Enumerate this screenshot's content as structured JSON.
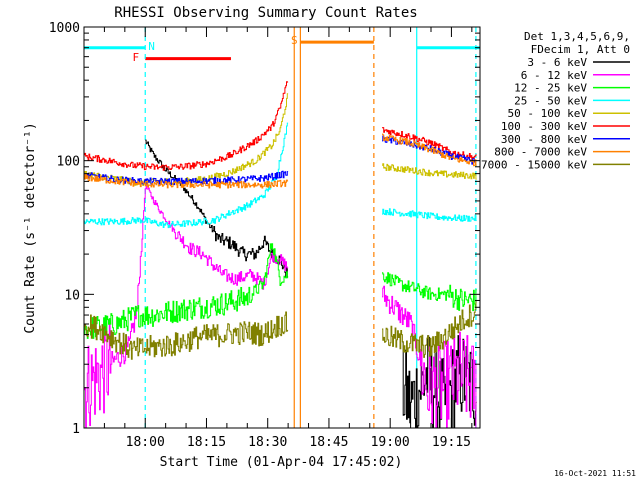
{
  "chart_data": {
    "type": "line",
    "title": "RHESSI Observing Summary Count Rates",
    "xlabel": "Start Time (01-Apr-04 17:45:02)",
    "ylabel": "Count Rate (s⁻¹ detector⁻¹)",
    "y_scale": "log",
    "ylim": [
      1,
      1000
    ],
    "xlim_minutes": [
      0,
      97
    ],
    "x_ticks": [
      {
        "label": "18:00",
        "minute": 15
      },
      {
        "label": "18:15",
        "minute": 30
      },
      {
        "label": "18:30",
        "minute": 45
      },
      {
        "label": "18:45",
        "minute": 60
      },
      {
        "label": "19:00",
        "minute": 75
      },
      {
        "label": "19:15",
        "minute": 90
      }
    ],
    "y_ticks": [
      {
        "label": "1",
        "value": 1
      },
      {
        "label": "10",
        "value": 10
      },
      {
        "label": "100",
        "value": 100
      },
      {
        "label": "1000",
        "value": 1000
      }
    ],
    "legend_header": [
      "Det 1,3,4,5,6,9,",
      "FDecim 1, Att 0"
    ],
    "legend_position": "right",
    "timestamp": "16-Oct-2021 11:51",
    "annotations": [
      {
        "text": "N",
        "color": "#00ffff",
        "x_minute": 15
      },
      {
        "text": "F",
        "color": "#ff0000",
        "x_minute": 14
      },
      {
        "text": "S",
        "color": "#ff8000",
        "x_minute": 51.6
      }
    ],
    "bars": [
      {
        "name": "night",
        "color": "#00ffff",
        "level": 700,
        "segments": [
          [
            0,
            15
          ],
          [
            81.5,
            97
          ]
        ]
      },
      {
        "name": "flare",
        "color": "#ff0000",
        "level": 580,
        "segments": [
          [
            15,
            36
          ]
        ]
      },
      {
        "name": "saa",
        "color": "#ff8000",
        "level": 770,
        "segments": [
          [
            53,
            71
          ]
        ]
      }
    ],
    "vlines": [
      {
        "color": "#00ffff",
        "style": "dashed",
        "x_minute": 15
      },
      {
        "color": "#00ffff",
        "style": "solid",
        "x_minute": 81.5
      },
      {
        "color": "#00ffff",
        "style": "dashed",
        "x_minute": 96
      },
      {
        "color": "#ff8000",
        "style": "solid",
        "x_minute": 51.5
      },
      {
        "color": "#ff8000",
        "style": "solid",
        "x_minute": 53
      },
      {
        "color": "#ff8000",
        "style": "dashed",
        "x_minute": 71
      }
    ],
    "series": [
      {
        "name": "3 - 6 keV",
        "color": "#000000",
        "seg1": [
          [
            15,
            140
          ],
          [
            17,
            110
          ],
          [
            20,
            85
          ],
          [
            24,
            65
          ],
          [
            28,
            45
          ],
          [
            30,
            35
          ],
          [
            33,
            26
          ],
          [
            36,
            24
          ],
          [
            39,
            20
          ],
          [
            42,
            20
          ],
          [
            44,
            25
          ],
          [
            46,
            20
          ],
          [
            48,
            18
          ],
          [
            49.8,
            14
          ]
        ],
        "seg2": [
          [
            78,
            2
          ],
          [
            80,
            1.5
          ],
          [
            84,
            2.5
          ],
          [
            88,
            1.5
          ],
          [
            92,
            2.5
          ],
          [
            96,
            2
          ]
        ]
      },
      {
        "name": "6 - 12 keV",
        "color": "#ff00ff",
        "seg1": [
          [
            0,
            2
          ],
          [
            11,
            4
          ],
          [
            13,
            8
          ],
          [
            15,
            65
          ],
          [
            18,
            45
          ],
          [
            22,
            30
          ],
          [
            26,
            22
          ],
          [
            29,
            20
          ],
          [
            32,
            16
          ],
          [
            34,
            14
          ],
          [
            37,
            13
          ],
          [
            41,
            14
          ],
          [
            44,
            12
          ],
          [
            46,
            20
          ],
          [
            48,
            18
          ],
          [
            49.8,
            16
          ]
        ],
        "seg2": [
          [
            73,
            10
          ],
          [
            76,
            8
          ],
          [
            80,
            6
          ],
          [
            84,
            2
          ],
          [
            88,
            2
          ],
          [
            92,
            2.5
          ],
          [
            96,
            2
          ]
        ]
      },
      {
        "name": "12 - 25 keV",
        "color": "#00ff00",
        "seg1": [
          [
            0,
            5.5
          ],
          [
            8,
            6
          ],
          [
            13,
            7
          ],
          [
            17,
            7
          ],
          [
            22,
            7.5
          ],
          [
            28,
            8
          ],
          [
            34,
            8.5
          ],
          [
            40,
            9.5
          ],
          [
            44,
            12
          ],
          [
            46,
            25
          ],
          [
            48,
            13
          ],
          [
            49.8,
            14
          ]
        ],
        "seg2": [
          [
            73,
            14
          ],
          [
            77,
            12
          ],
          [
            81,
            11
          ],
          [
            85,
            10
          ],
          [
            89,
            10
          ],
          [
            93,
            9
          ],
          [
            96,
            9
          ]
        ]
      },
      {
        "name": "25 - 50 keV",
        "color": "#00ffff",
        "seg1": [
          [
            0,
            35
          ],
          [
            8,
            35
          ],
          [
            14,
            36
          ],
          [
            20,
            33
          ],
          [
            26,
            34
          ],
          [
            32,
            36
          ],
          [
            36,
            41
          ],
          [
            40,
            46
          ],
          [
            44,
            55
          ],
          [
            47,
            75
          ],
          [
            49.8,
            185
          ]
        ],
        "seg2": [
          [
            73,
            42
          ],
          [
            80,
            40
          ],
          [
            86,
            38
          ],
          [
            92,
            37
          ],
          [
            96,
            37
          ]
        ]
      },
      {
        "name": "50 - 100 keV",
        "color": "#ccc000",
        "seg1": [
          [
            0,
            80
          ],
          [
            8,
            73
          ],
          [
            14,
            68
          ],
          [
            18,
            70
          ],
          [
            24,
            70
          ],
          [
            30,
            73
          ],
          [
            36,
            82
          ],
          [
            42,
            100
          ],
          [
            46,
            130
          ],
          [
            48,
            170
          ],
          [
            49.8,
            300
          ]
        ],
        "seg2": [
          [
            73,
            90
          ],
          [
            80,
            85
          ],
          [
            86,
            80
          ],
          [
            92,
            78
          ],
          [
            96,
            77
          ]
        ]
      },
      {
        "name": "100 - 300 keV",
        "color": "#ff0000",
        "seg1": [
          [
            0,
            108
          ],
          [
            6,
            100
          ],
          [
            12,
            92
          ],
          [
            18,
            89
          ],
          [
            24,
            90
          ],
          [
            30,
            95
          ],
          [
            36,
            110
          ],
          [
            42,
            140
          ],
          [
            46,
            180
          ],
          [
            48,
            250
          ],
          [
            49.8,
            400
          ]
        ],
        "seg2": [
          [
            73,
            170
          ],
          [
            79,
            155
          ],
          [
            85,
            135
          ],
          [
            90,
            115
          ],
          [
            96,
            105
          ]
        ]
      },
      {
        "name": "300 - 800 keV",
        "color": "#0000ff",
        "seg1": [
          [
            0,
            78
          ],
          [
            8,
            72
          ],
          [
            14,
            70
          ],
          [
            20,
            70
          ],
          [
            26,
            70
          ],
          [
            32,
            71
          ],
          [
            38,
            72
          ],
          [
            44,
            74
          ],
          [
            49.8,
            80
          ]
        ],
        "seg2": [
          [
            73,
            145
          ],
          [
            79,
            135
          ],
          [
            85,
            122
          ],
          [
            90,
            108
          ],
          [
            96,
            98
          ]
        ]
      },
      {
        "name": "800 - 7000 keV",
        "color": "#ff8000",
        "seg1": [
          [
            0,
            75
          ],
          [
            8,
            70
          ],
          [
            14,
            67
          ],
          [
            20,
            66
          ],
          [
            26,
            66
          ],
          [
            32,
            66
          ],
          [
            38,
            66
          ],
          [
            44,
            66
          ],
          [
            49.8,
            68
          ]
        ],
        "seg2": [
          [
            73,
            150
          ],
          [
            79,
            138
          ],
          [
            85,
            120
          ],
          [
            90,
            104
          ],
          [
            96,
            96
          ]
        ]
      },
      {
        "name": "7000 - 15000 keV",
        "color": "#808000",
        "seg1": [
          [
            0,
            6
          ],
          [
            4,
            5.5
          ],
          [
            8,
            4.5
          ],
          [
            12,
            3.8
          ],
          [
            16,
            4
          ],
          [
            22,
            4.2
          ],
          [
            28,
            4.8
          ],
          [
            34,
            5
          ],
          [
            40,
            5.2
          ],
          [
            44,
            5
          ],
          [
            48,
            6
          ],
          [
            49.8,
            6
          ]
        ],
        "seg2": [
          [
            73,
            5
          ],
          [
            77,
            4.5
          ],
          [
            81,
            4.2
          ],
          [
            85,
            4
          ],
          [
            89,
            5
          ],
          [
            93,
            6.5
          ],
          [
            96,
            7.5
          ]
        ]
      }
    ]
  }
}
